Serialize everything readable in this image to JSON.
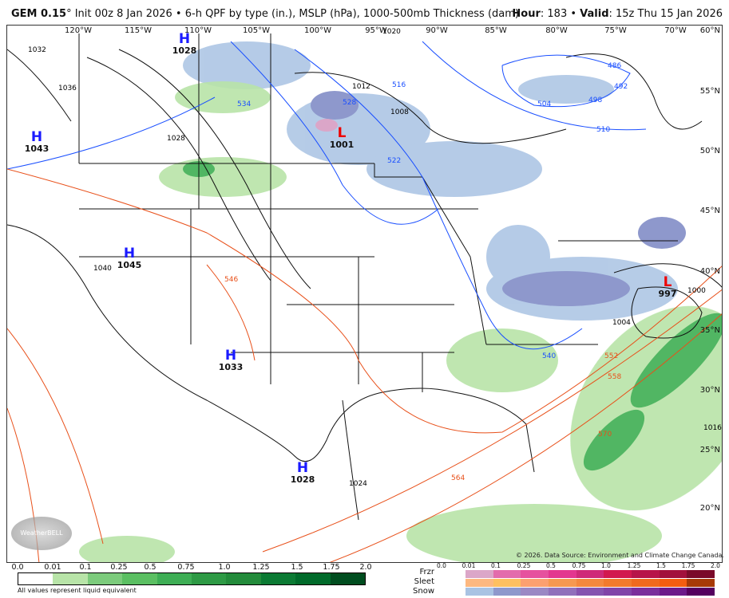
{
  "header": {
    "model": "GEM 0.15",
    "deg": "°",
    "desc": " Init 00z 8 Jan 2026 • 6-h QPF by type (in.), MSLP (hPa), 1000-500mb Thickness (dam)",
    "hour_label": "Hour",
    "hour": ": 183 • ",
    "valid_label": "Valid",
    "valid": ": 15z Thu 15 Jan 2026"
  },
  "longitudes": [
    "120°W",
    "115°W",
    "110°W",
    "105°W",
    "100°W",
    "95°W",
    "90°W",
    "85°W",
    "80°W",
    "75°W",
    "70°W"
  ],
  "latitudes": [
    "60°N",
    "55°N",
    "50°N",
    "45°N",
    "40°N",
    "35°N",
    "30°N",
    "25°N",
    "20°N"
  ],
  "pressure_centers": [
    {
      "type": "H",
      "value": "1028"
    },
    {
      "type": "H",
      "value": "1043"
    },
    {
      "type": "H",
      "value": "1045"
    },
    {
      "type": "H",
      "value": "1033"
    },
    {
      "type": "H",
      "value": "1028"
    },
    {
      "type": "L",
      "value": "1001"
    },
    {
      "type": "L",
      "value": "997"
    }
  ],
  "isobar_labels": [
    "1032",
    "1036",
    "1028",
    "1020",
    "1016",
    "1012",
    "1008",
    "1004",
    "1040",
    "1024",
    "1000"
  ],
  "thickness_labels": [
    "486",
    "492",
    "498",
    "504",
    "510",
    "516",
    "522",
    "528",
    "534",
    "540",
    "546",
    "552",
    "558",
    "564",
    "570"
  ],
  "credit": "© 2026. Data Source: Environment and Climate Change Canada.",
  "logo": "WeatherBELL",
  "rain_legend": {
    "ticks": [
      "0.0",
      "0.01",
      "0.1",
      "0.25",
      "0.5",
      "0.75",
      "1.0",
      "1.25",
      "1.5",
      "1.75",
      "2.0"
    ],
    "colors": [
      "#ffffff",
      "#b8e4a8",
      "#7ccb7c",
      "#5bbf62",
      "#3eae55",
      "#2e9a45",
      "#238b3b",
      "#0b7a33",
      "#006a2a",
      "#004d1f"
    ],
    "note": "All values represent liquid equivalent"
  },
  "ptype_legend": {
    "ticks": [
      "0.0",
      "0.01",
      "0.1",
      "0.25",
      "0.5",
      "0.75",
      "1.0",
      "1.25",
      "1.5",
      "1.75",
      "2.0"
    ],
    "rows": [
      {
        "label": "Frzr",
        "colors": [
          "#dba6c8",
          "#e36cac",
          "#e6519e",
          "#e3368f",
          "#cf2a78",
          "#d2194f",
          "#b71449",
          "#a2103c",
          "#7a0a2a"
        ]
      },
      {
        "label": "Sleet",
        "colors": [
          "#fdb880",
          "#fec060",
          "#fca070",
          "#f69850",
          "#f4883e",
          "#f27a2c",
          "#f06a1e",
          "#f45d10",
          "#a73a06"
        ]
      },
      {
        "label": "Snow",
        "colors": [
          "#a9c3e3",
          "#8e98cc",
          "#9b88c4",
          "#9170bb",
          "#8554b0",
          "#8044a8",
          "#7a2f9c",
          "#6c1a8a",
          "#55005f"
        ]
      }
    ]
  }
}
